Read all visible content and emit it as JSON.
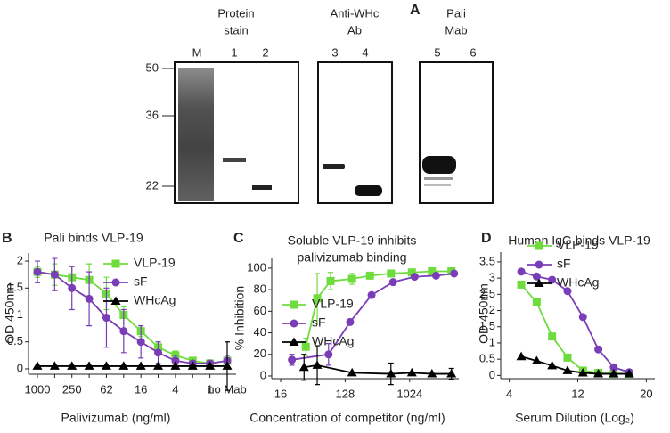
{
  "blot": {
    "panel_label": "A",
    "groups": [
      [
        "Protein",
        "stain"
      ],
      [
        "Anti-WHc",
        "Ab"
      ],
      [
        "Pali",
        "Mab"
      ]
    ],
    "lanes": [
      "M",
      "1",
      "2",
      "3",
      "4",
      "5",
      "6"
    ],
    "mw": [
      50,
      36,
      22
    ]
  },
  "chart_data": [
    {
      "type": "line",
      "panel_label": "B",
      "title": [
        "Pali binds VLP-19"
      ],
      "xlabel": "Palivizumab (ng/ml)",
      "ylabel": "OD 450nm",
      "categories": [
        "1000",
        null,
        "250",
        null,
        "62",
        null,
        "16",
        null,
        "4",
        null,
        "1",
        "no Mab"
      ],
      "ylim": [
        -0.1,
        2.15
      ],
      "yticks": [
        0,
        0.5,
        1,
        1.5,
        2
      ],
      "series": [
        {
          "name": "VLP-19",
          "color": "#6fdc3e",
          "marker": "square",
          "values": [
            1.8,
            1.75,
            1.7,
            1.65,
            1.4,
            1.0,
            0.7,
            0.4,
            0.25,
            0.15,
            0.1,
            0.15
          ],
          "errors": [
            0.1,
            0.2,
            0.2,
            0.3,
            0.3,
            0.15,
            0.1,
            0.1,
            0.08,
            0.05,
            0.05,
            0.1
          ]
        },
        {
          "name": "sF",
          "color": "#7a3db8",
          "marker": "circle",
          "values": [
            1.8,
            1.75,
            1.5,
            1.3,
            0.95,
            0.7,
            0.5,
            0.3,
            0.15,
            0.1,
            0.1,
            0.15
          ],
          "errors": [
            0.2,
            0.3,
            0.4,
            0.5,
            0.55,
            0.4,
            0.3,
            0.2,
            0.1,
            0.05,
            0.05,
            0.1
          ]
        },
        {
          "name": "WHcAg",
          "color": "#000000",
          "marker": "triangle",
          "values": [
            0.05,
            0.05,
            0.05,
            0.05,
            0.05,
            0.05,
            0.05,
            0.05,
            0.05,
            0.05,
            0.05,
            0.05
          ],
          "errors": [
            null,
            null,
            null,
            null,
            null,
            null,
            null,
            null,
            null,
            null,
            null,
            0.45
          ]
        }
      ]
    },
    {
      "type": "line",
      "panel_label": "C",
      "title": [
        "Soluble VLP-19 inhibits",
        "palivizumab binding"
      ],
      "xlabel": "Concentration of competitor (ng/ml)",
      "ylabel": "% Inhibition",
      "xscale": "log2",
      "xlim": [
        12,
        5000
      ],
      "xticks": [
        16,
        128,
        1024
      ],
      "ylim": [
        -2.5,
        109
      ],
      "yticks": [
        0,
        20,
        40,
        60,
        80,
        100
      ],
      "series": [
        {
          "name": "VLP-19",
          "color": "#6fdc3e",
          "marker": "square",
          "x": [
            36,
            52,
            80,
            160,
            285,
            560,
            1100,
            2100,
            3940
          ],
          "values": [
            27,
            72,
            88,
            90,
            93,
            95,
            96,
            97,
            97
          ],
          "errors": [
            8,
            23,
            8,
            5,
            null,
            null,
            null,
            null,
            null
          ]
        },
        {
          "name": "sF",
          "color": "#7a3db8",
          "marker": "circle",
          "x": [
            23,
            75,
            150,
            300,
            600,
            1200,
            2400,
            4300
          ],
          "values": [
            15,
            20,
            50,
            75,
            87,
            92,
            93,
            95
          ],
          "errors": [
            5,
            10,
            null,
            null,
            null,
            null,
            null,
            null
          ]
        },
        {
          "name": "WHcAg",
          "color": "#000000",
          "marker": "triangle",
          "x": [
            34,
            52,
            160,
            560,
            1100,
            2100,
            3940
          ],
          "values": [
            8,
            10,
            3,
            2,
            3,
            2,
            2
          ],
          "errors": [
            12,
            18,
            null,
            10,
            null,
            null,
            5
          ]
        }
      ]
    },
    {
      "type": "line",
      "panel_label": "D",
      "title": [
        "Human IgG binds VLP-19"
      ],
      "xlabel": "Serum Dilution (Log₂)",
      "ylabel": "OD 450nm",
      "xlim": [
        3,
        21
      ],
      "xticks": [
        4,
        12,
        20
      ],
      "ylim": [
        -0.1,
        3.8
      ],
      "yticks": [
        0,
        0.5,
        1,
        1.5,
        2,
        2.5,
        3,
        3.5
      ],
      "series": [
        {
          "name": "VLP-19",
          "color": "#6fdc3e",
          "marker": "square",
          "x": [
            5.4,
            7.2,
            9,
            10.8,
            12.6,
            14.4,
            16.2,
            18
          ],
          "values": [
            2.8,
            2.25,
            1.2,
            0.55,
            0.15,
            0.08,
            0.05,
            0.05
          ]
        },
        {
          "name": "sF",
          "color": "#7a3db8",
          "marker": "circle",
          "x": [
            5.4,
            7.2,
            9,
            10.8,
            12.6,
            14.4,
            16.2,
            18
          ],
          "values": [
            3.2,
            3.05,
            2.95,
            2.6,
            1.8,
            0.8,
            0.25,
            0.1
          ]
        },
        {
          "name": "WHcAg",
          "color": "#000000",
          "marker": "triangle",
          "x": [
            5.4,
            7.2,
            9,
            10.8,
            12.6,
            14.4,
            16.2,
            18
          ],
          "values": [
            0.58,
            0.45,
            0.3,
            0.15,
            0.08,
            0.05,
            0.05,
            0.05
          ]
        }
      ]
    }
  ]
}
